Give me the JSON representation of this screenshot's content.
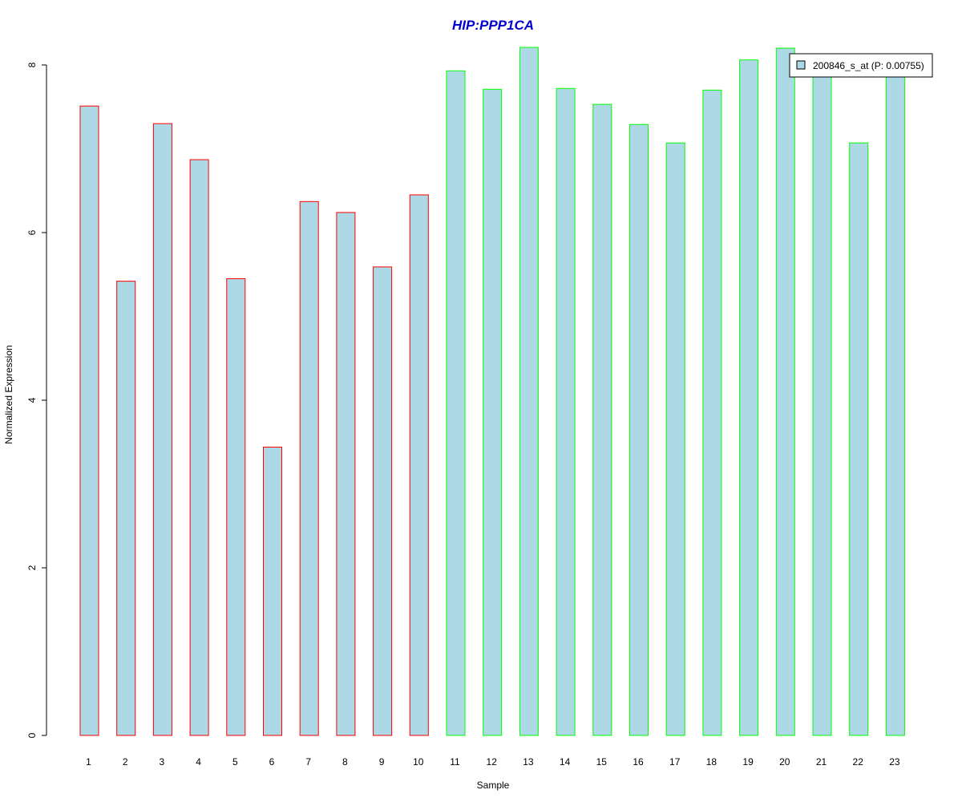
{
  "chart_data": {
    "type": "bar",
    "title": "HIP:PPP1CA",
    "xlabel": "Sample",
    "ylabel": "Normalized Expression",
    "ylim": [
      0,
      8
    ],
    "yticks": [
      "0",
      "2",
      "4",
      "6",
      "8"
    ],
    "categories": [
      "1",
      "2",
      "3",
      "4",
      "5",
      "6",
      "7",
      "8",
      "9",
      "10",
      "11",
      "12",
      "13",
      "14",
      "15",
      "16",
      "17",
      "18",
      "19",
      "20",
      "21",
      "22",
      "23"
    ],
    "series": [
      {
        "name": "200846_s_at (P: 0.00755)",
        "values": [
          7.51,
          5.42,
          7.3,
          6.87,
          5.45,
          3.44,
          6.37,
          6.24,
          5.59,
          6.45,
          7.93,
          7.71,
          8.21,
          7.72,
          7.53,
          7.29,
          7.07,
          7.7,
          8.06,
          8.2,
          7.95,
          7.07,
          7.91
        ],
        "fill": "#add8e6",
        "groups": [
          "red",
          "red",
          "red",
          "red",
          "red",
          "red",
          "red",
          "red",
          "red",
          "red",
          "green",
          "green",
          "green",
          "green",
          "green",
          "green",
          "green",
          "green",
          "green",
          "green",
          "green",
          "green",
          "green"
        ]
      }
    ],
    "colors": {
      "red_border": "#ff0000",
      "green_border": "#00ff00",
      "title": "#0000cc",
      "bar_fill": "#add8e6"
    },
    "legend_position": "top-right",
    "grid": false
  }
}
